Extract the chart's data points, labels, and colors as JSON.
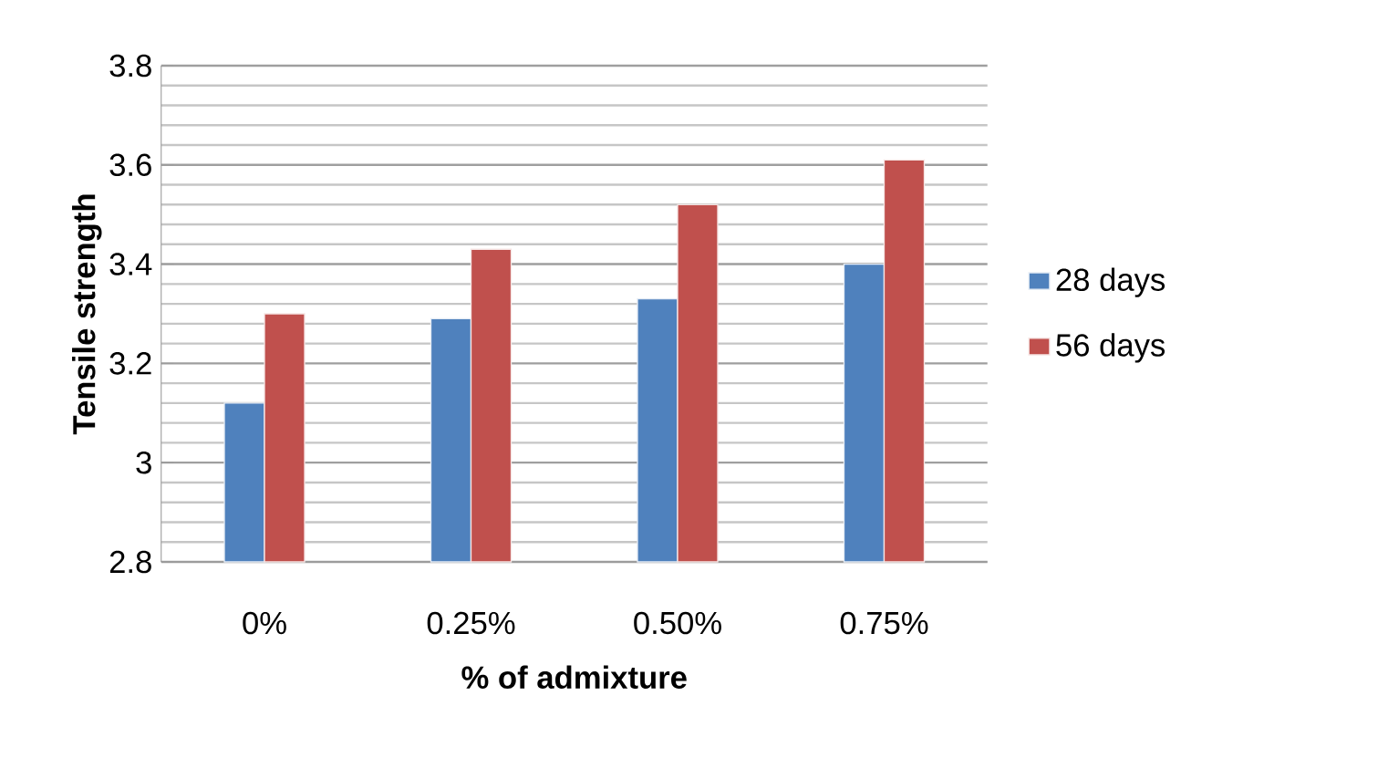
{
  "chart_data": {
    "type": "bar",
    "xlabel": "% of admixture",
    "ylabel": "Tensile strength",
    "categories": [
      "0%",
      "0.25%",
      "0.50%",
      "0.75%"
    ],
    "series": [
      {
        "name": "28 days",
        "color": "#4f81bd",
        "values": [
          3.12,
          3.29,
          3.33,
          3.4
        ]
      },
      {
        "name": "56 days",
        "color": "#c0504d",
        "values": [
          3.3,
          3.43,
          3.52,
          3.61
        ]
      }
    ],
    "ylim": [
      2.8,
      3.8
    ],
    "yticks": [
      2.8,
      3,
      3.2,
      3.4,
      3.6,
      3.8
    ],
    "grid": "y",
    "legend": "right"
  }
}
